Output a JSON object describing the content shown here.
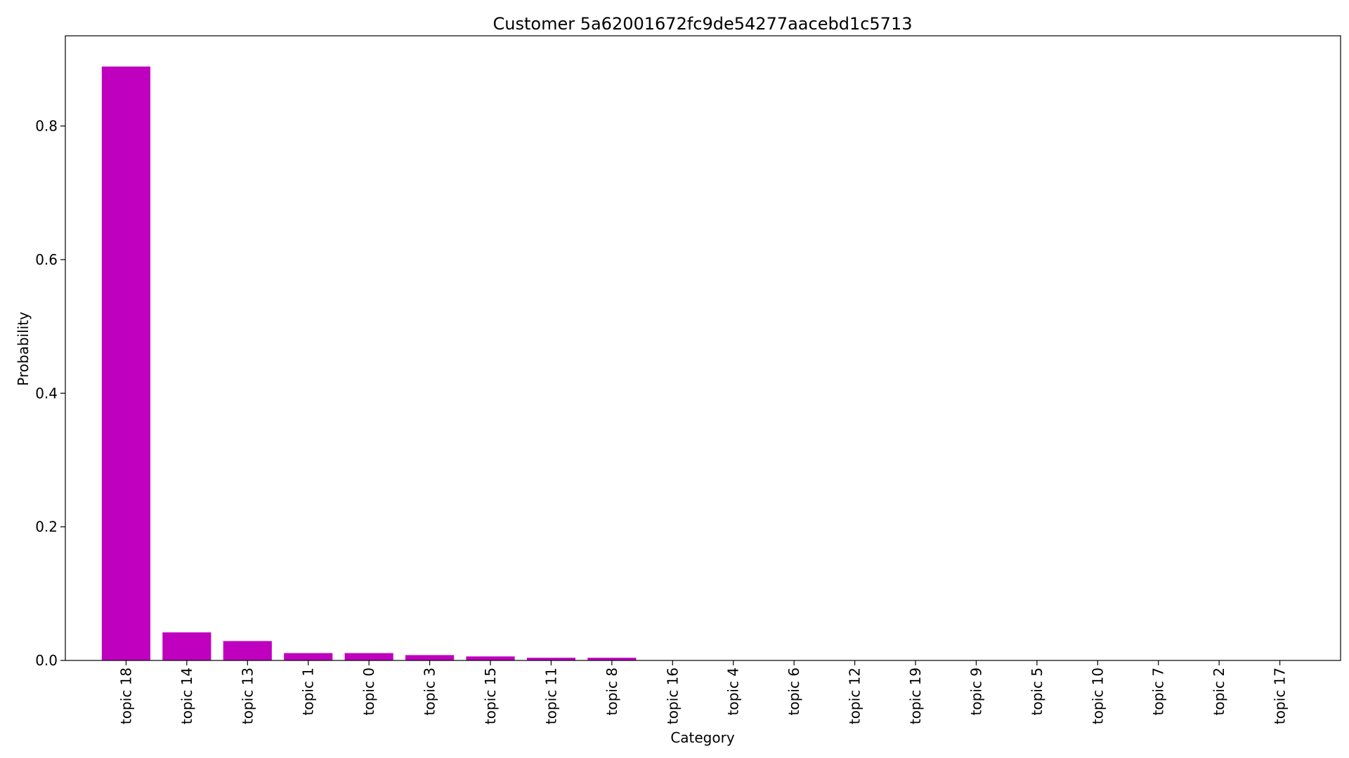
{
  "chart_data": {
    "type": "bar",
    "title": "Customer 5a62001672fc9de54277aacebd1c5713",
    "xlabel": "Category",
    "ylabel": "Probability",
    "ylim": [
      0,
      0.935
    ],
    "yticks": [
      0.0,
      0.2,
      0.4,
      0.6,
      0.8
    ],
    "ytick_labels": [
      "0.0",
      "0.2",
      "0.4",
      "0.6",
      "0.8"
    ],
    "bar_color": "#bf00bf",
    "grid": false,
    "categories": [
      "topic 18",
      "topic 14",
      "topic 13",
      "topic 1",
      "topic 0",
      "topic 3",
      "topic 15",
      "topic 11",
      "topic 8",
      "topic 16",
      "topic 4",
      "topic 6",
      "topic 12",
      "topic 19",
      "topic 9",
      "topic 5",
      "topic 10",
      "topic 7",
      "topic 2",
      "topic 17"
    ],
    "values": [
      0.889,
      0.042,
      0.029,
      0.011,
      0.011,
      0.008,
      0.006,
      0.004,
      0.004,
      0.0005,
      0.0003,
      0.0003,
      0.0002,
      0.0002,
      0.0002,
      0.0001,
      0.0001,
      0.0001,
      0.0001,
      0.0001
    ]
  }
}
